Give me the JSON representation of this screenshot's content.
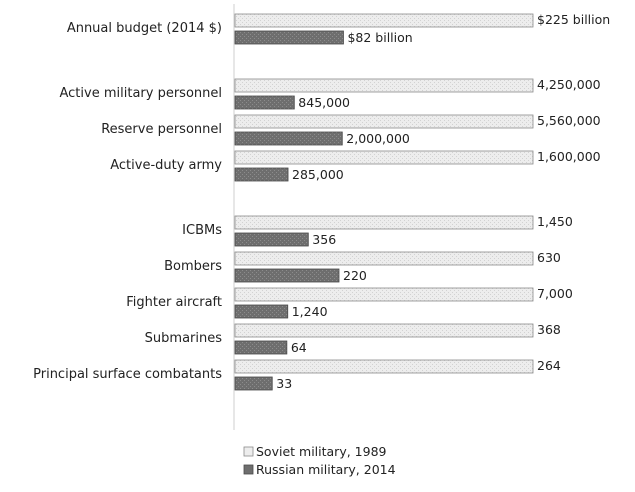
{
  "chart_data": {
    "type": "bar",
    "orientation": "horizontal",
    "colors": {
      "soviet": "#ededed",
      "soviet_stroke": "#8a8a8a",
      "russian": "#6e6e6e",
      "russian_stroke": "#4a4a4a"
    },
    "series": [
      {
        "name": "Soviet military, 1989",
        "key": "soviet"
      },
      {
        "name": "Russian military, 2014",
        "key": "russian"
      }
    ],
    "groups": [
      {
        "rows": [
          {
            "label": "Annual budget (2014 $)",
            "soviet": 1.0,
            "russian": 0.364,
            "soviet_label": "$225 billion",
            "russian_label": "$82 billion"
          }
        ]
      },
      {
        "rows": [
          {
            "label": "Active military personnel",
            "soviet": 1.0,
            "russian": 0.199,
            "soviet_label": "4,250,000",
            "russian_label": "845,000"
          },
          {
            "label": "Reserve personnel",
            "soviet": 1.0,
            "russian": 0.36,
            "soviet_label": "5,560,000",
            "russian_label": "2,000,000"
          },
          {
            "label": "Active-duty army",
            "soviet": 1.0,
            "russian": 0.178,
            "soviet_label": "1,600,000",
            "russian_label": "285,000"
          }
        ]
      },
      {
        "rows": [
          {
            "label": "ICBMs",
            "soviet": 1.0,
            "russian": 0.246,
            "soviet_label": "1,450",
            "russian_label": "356"
          },
          {
            "label": "Bombers",
            "soviet": 1.0,
            "russian": 0.349,
            "soviet_label": "630",
            "russian_label": "220"
          },
          {
            "label": "Fighter aircraft",
            "soviet": 1.0,
            "russian": 0.177,
            "soviet_label": "7,000",
            "russian_label": "1,240"
          },
          {
            "label": "Submarines",
            "soviet": 1.0,
            "russian": 0.174,
            "soviet_label": "368",
            "russian_label": "64"
          },
          {
            "label": "Principal surface combatants",
            "soviet": 1.0,
            "russian": 0.125,
            "soviet_label": "264",
            "russian_label": "33"
          }
        ]
      }
    ],
    "legend_position": "bottom-center",
    "grid": false
  }
}
